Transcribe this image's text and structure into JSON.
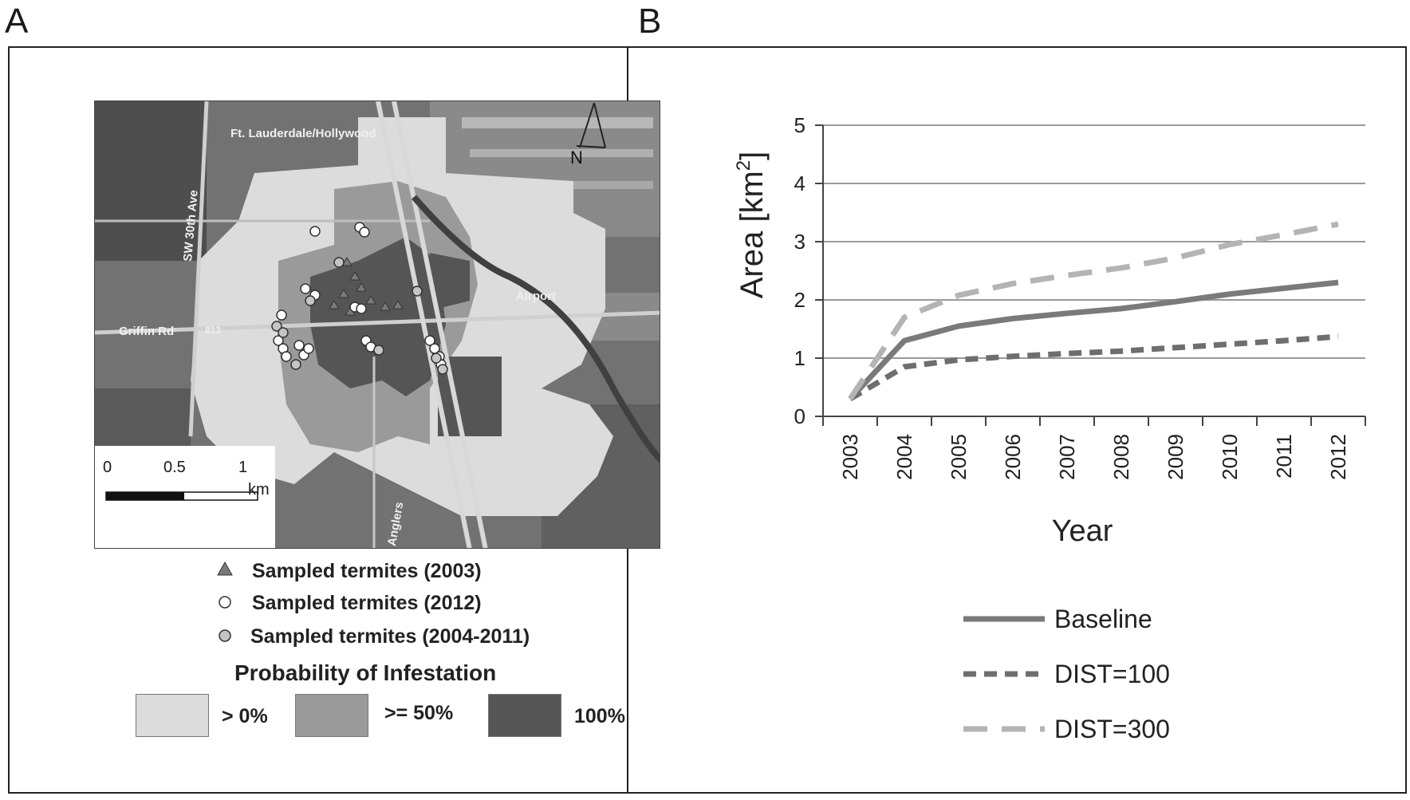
{
  "panels": {
    "a_letter": "A",
    "b_letter": "B"
  },
  "map": {
    "streets": [
      "Ft. Lauderdale/Hollywood",
      "SW 30th Ave",
      "Griffin Rd",
      "813",
      "Anglers",
      "Airport"
    ],
    "north_label": "N",
    "scale": {
      "ticks": [
        "0",
        "0.5",
        "1"
      ],
      "unit": "km"
    }
  },
  "legend_a": {
    "items": [
      {
        "label": "Sampled termites (2003)",
        "icon": "triangle-icon"
      },
      {
        "label": "Sampled termites (2012)",
        "icon": "white-circle-icon"
      },
      {
        "label": "Sampled termites (2004-2011)",
        "icon": "grey-circle-icon"
      }
    ],
    "probability_title": "Probability of Infestation",
    "probability_classes": [
      {
        "label": "> 0%",
        "color": "#dcdcdc"
      },
      {
        "label": ">= 50%",
        "color": "#9a9a9a"
      },
      {
        "label": "100%",
        "color": "#555555"
      }
    ]
  },
  "chart_data": {
    "type": "line",
    "xlabel": "Year",
    "ylabel": "Area [km²]",
    "ylabel_base": "Area [km",
    "ylabel_sup": "2",
    "ylabel_end": "]",
    "x": [
      "2003",
      "2004",
      "2005",
      "2006",
      "2007",
      "2008",
      "2009",
      "2010",
      "2011",
      "2012"
    ],
    "ylim": [
      0,
      5
    ],
    "yticks": [
      "0",
      "1",
      "2",
      "3",
      "4",
      "5"
    ],
    "grid": true,
    "legend_position": "bottom",
    "series": [
      {
        "name": "Baseline",
        "color": "#7a7a7a",
        "dash": "solid",
        "values": [
          0.3,
          1.3,
          1.55,
          1.68,
          1.77,
          1.85,
          1.97,
          2.1,
          2.2,
          2.3
        ]
      },
      {
        "name": "DIST=100",
        "color": "#6e6e6e",
        "dash": "short",
        "values": [
          0.3,
          0.85,
          0.97,
          1.03,
          1.08,
          1.12,
          1.18,
          1.24,
          1.3,
          1.37
        ]
      },
      {
        "name": "DIST=300",
        "color": "#b4b4b4",
        "dash": "long",
        "values": [
          0.3,
          1.7,
          2.08,
          2.28,
          2.42,
          2.55,
          2.72,
          2.95,
          3.12,
          3.3
        ]
      }
    ]
  }
}
